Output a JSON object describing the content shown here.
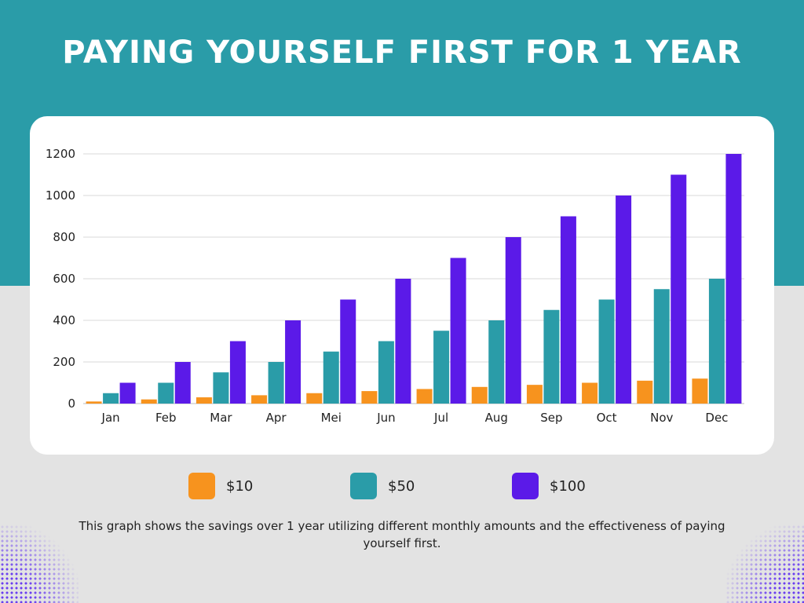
{
  "title": "PAYING YOURSELF FIRST FOR 1 YEAR",
  "caption": "This graph shows the savings over 1 year utilizing different monthly amounts and the effectiveness of paying yourself first.",
  "colors": {
    "header_bg": "#2a9ca8",
    "page_bg": "#e3e3e3",
    "card_bg": "#ffffff",
    "gridline": "#d9d9d9"
  },
  "chart_data": {
    "type": "bar",
    "categories": [
      "Jan",
      "Feb",
      "Mar",
      "Apr",
      "Mei",
      "Jun",
      "Jul",
      "Aug",
      "Sep",
      "Oct",
      "Nov",
      "Dec"
    ],
    "series": [
      {
        "name": "$10",
        "color": "#f7931e",
        "values": [
          10,
          20,
          30,
          40,
          50,
          60,
          70,
          80,
          90,
          100,
          110,
          120
        ]
      },
      {
        "name": "$50",
        "color": "#2a9ca8",
        "values": [
          50,
          100,
          150,
          200,
          250,
          300,
          350,
          400,
          450,
          500,
          550,
          600
        ]
      },
      {
        "name": "$100",
        "color": "#5b1ae8",
        "values": [
          100,
          200,
          300,
          400,
          500,
          600,
          700,
          800,
          900,
          1000,
          1100,
          1200
        ]
      }
    ],
    "yticks": [
      "0",
      "200",
      "400",
      "600",
      "800",
      "1000",
      "1200"
    ],
    "ylim": [
      0,
      1200
    ],
    "grid": true,
    "legend_position": "bottom"
  }
}
